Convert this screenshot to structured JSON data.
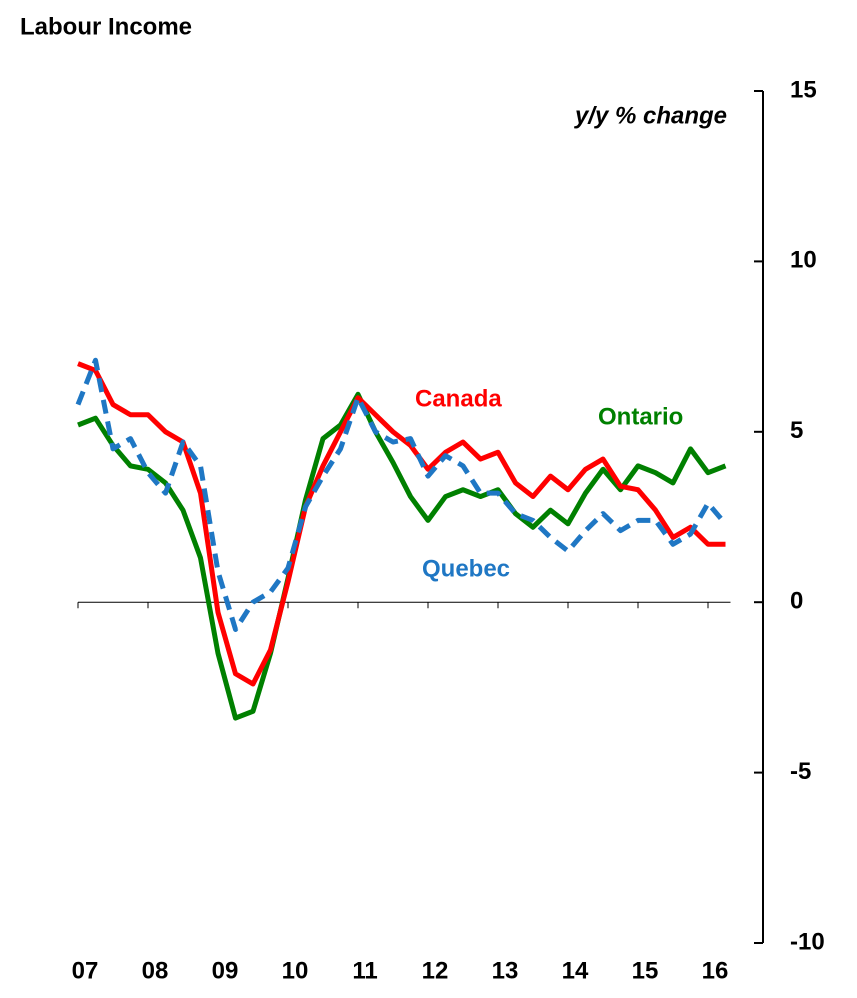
{
  "chart_data": {
    "type": "line",
    "title": "Labour Income",
    "y_axis_label": "y/y % change",
    "categories": [
      "07",
      null,
      null,
      null,
      "08",
      null,
      null,
      null,
      "09",
      null,
      null,
      null,
      "10",
      null,
      null,
      null,
      "11",
      null,
      null,
      null,
      "12",
      null,
      null,
      null,
      "13",
      null,
      null,
      null,
      "14",
      null,
      null,
      null,
      "15",
      null,
      null,
      null,
      "16",
      null
    ],
    "series": [
      {
        "name": "Canada",
        "color": "#ff0000",
        "dashed": false,
        "values": [
          7.0,
          6.8,
          5.8,
          5.5,
          5.5,
          5.0,
          4.7,
          3.2,
          -0.3,
          -2.1,
          -2.4,
          -1.4,
          0.6,
          2.8,
          4.0,
          5.0,
          6.0,
          5.5,
          5.0,
          4.6,
          3.9,
          4.4,
          4.7,
          4.2,
          4.4,
          3.5,
          3.1,
          3.7,
          3.3,
          3.9,
          4.2,
          3.4,
          3.3,
          2.7,
          1.9,
          2.2,
          1.7,
          1.7
        ]
      },
      {
        "name": "Ontario",
        "color": "#008000",
        "dashed": false,
        "values": [
          5.2,
          5.4,
          4.6,
          4.0,
          3.9,
          3.5,
          2.7,
          1.3,
          -1.5,
          -3.4,
          -3.2,
          -1.5,
          0.7,
          3.0,
          4.8,
          5.2,
          6.1,
          5.0,
          4.1,
          3.1,
          2.4,
          3.1,
          3.3,
          3.1,
          3.3,
          2.6,
          2.2,
          2.7,
          2.3,
          3.2,
          3.9,
          3.3,
          4.0,
          3.8,
          3.5,
          4.5,
          3.8,
          4.0
        ]
      },
      {
        "name": "Quebec",
        "color": "#1f77c4",
        "dashed": true,
        "values": [
          5.8,
          7.1,
          4.5,
          4.8,
          3.8,
          3.2,
          4.7,
          4.0,
          0.9,
          -0.8,
          0.0,
          0.3,
          1.0,
          2.8,
          3.7,
          4.5,
          6.0,
          5.0,
          4.7,
          4.8,
          3.7,
          4.3,
          4.0,
          3.2,
          3.2,
          2.6,
          2.4,
          1.9,
          1.5,
          2.1,
          2.6,
          2.1,
          2.4,
          2.4,
          1.7,
          2.0,
          2.9,
          2.3
        ]
      }
    ],
    "ylim": [
      -10,
      15
    ],
    "yticks": [
      -10,
      -5,
      0,
      5,
      10,
      15
    ],
    "y_axis_side": "right",
    "grid": false
  }
}
